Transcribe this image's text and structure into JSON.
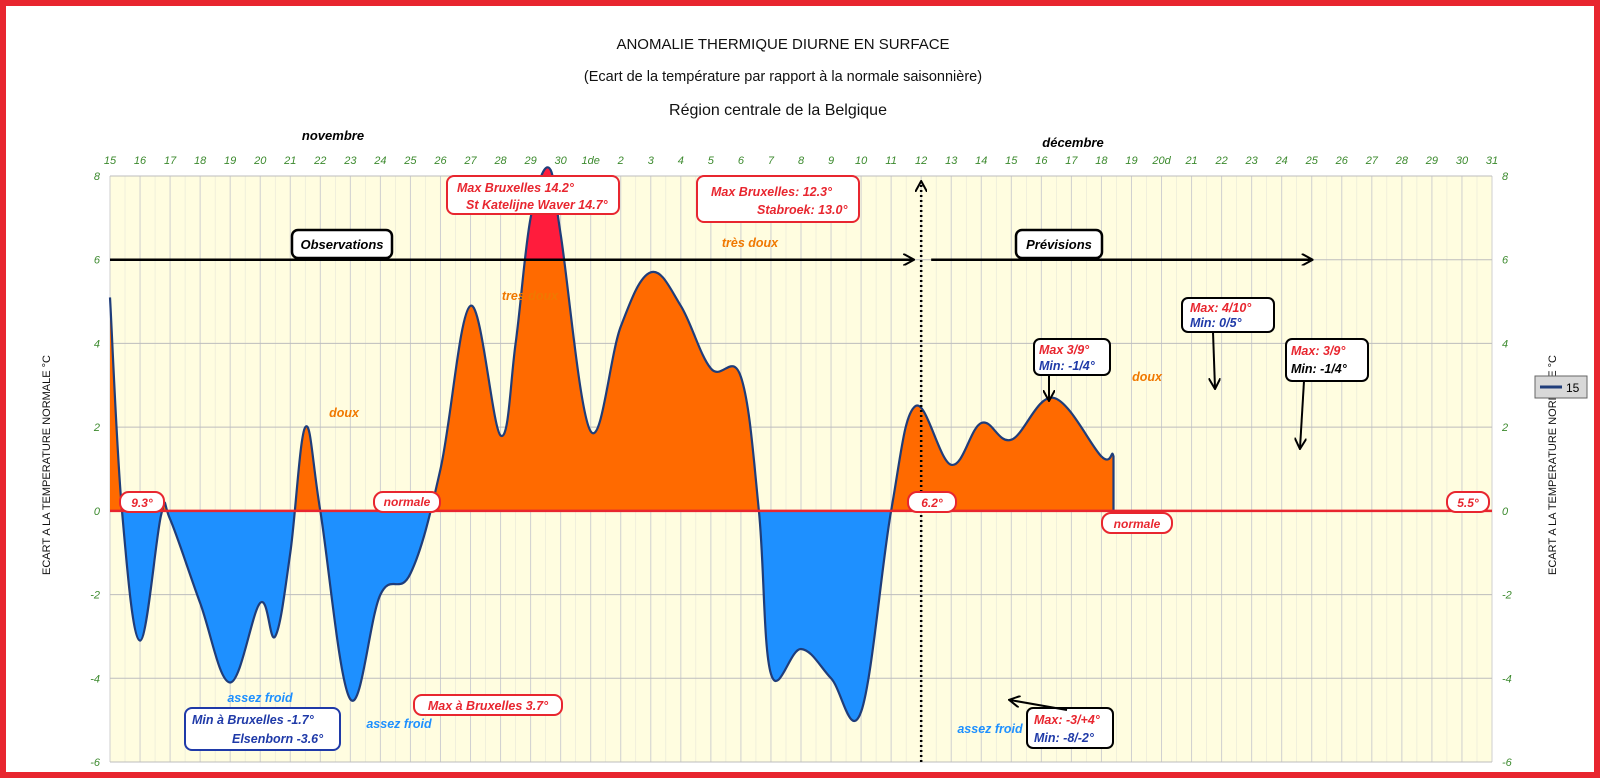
{
  "chart_data": {
    "type": "area",
    "title": "ANOMALIE THERMIQUE DIURNE EN SURFACE",
    "subtitle": "(Ecart de la température par rapport à la normale saisonnière)",
    "region": "Région centrale de la Belgique",
    "ylabel": "ECART A LA TEMPERATURE NORMALE °C",
    "ylim": [
      -6,
      8
    ],
    "yticks": [
      8,
      6,
      4,
      2,
      0,
      -2,
      -4,
      -6
    ],
    "months": [
      {
        "label": "novembre"
      },
      {
        "label": "décembre"
      }
    ],
    "xticks": [
      "15",
      "16",
      "17",
      "18",
      "19",
      "20",
      "21",
      "22",
      "23",
      "24",
      "25",
      "26",
      "27",
      "28",
      "29",
      "30",
      "1de",
      "2",
      "3",
      "4",
      "5",
      "6",
      "7",
      "8",
      "9",
      "10",
      "11",
      "12",
      "13",
      "14",
      "15",
      "16",
      "17",
      "18",
      "19",
      "20d",
      "21",
      "22",
      "23",
      "24",
      "25",
      "26",
      "27",
      "28",
      "29",
      "30",
      "31"
    ],
    "series": [
      {
        "name": "15",
        "color": "#1f3d7a",
        "points": [
          [
            0,
            5.1
          ],
          [
            0.4,
            0
          ],
          [
            1,
            -3.1
          ],
          [
            1.7,
            -0.1
          ],
          [
            2,
            -0.2
          ],
          [
            3,
            -2.2
          ],
          [
            4,
            -4.1
          ],
          [
            5,
            -2.2
          ],
          [
            5.5,
            -3
          ],
          [
            6,
            -1
          ],
          [
            6.5,
            2
          ],
          [
            7,
            0
          ],
          [
            8,
            -4.5
          ],
          [
            9,
            -2
          ],
          [
            10,
            -1.5
          ],
          [
            11,
            1
          ],
          [
            12,
            4.9
          ],
          [
            13,
            1.8
          ],
          [
            13.5,
            4
          ],
          [
            14,
            7
          ],
          [
            14.6,
            8.2
          ],
          [
            15,
            6.6
          ],
          [
            16,
            1.9
          ],
          [
            17,
            4.4
          ],
          [
            18,
            5.7
          ],
          [
            19,
            4.9
          ],
          [
            20,
            3.4
          ],
          [
            21,
            3.2
          ],
          [
            21.6,
            0
          ],
          [
            22,
            -3.9
          ],
          [
            23,
            -3.3
          ],
          [
            24,
            -4
          ],
          [
            25,
            -4.8
          ],
          [
            26,
            0
          ],
          [
            26.8,
            2.5
          ],
          [
            28,
            1.1
          ],
          [
            29,
            2.1
          ],
          [
            30,
            1.7
          ],
          [
            31.4,
            2.7
          ],
          [
            33,
            1.3
          ],
          [
            33.4,
            1.3
          ],
          [
            33.4,
            0
          ]
        ]
      }
    ],
    "forecast_start_x": 27,
    "forecast_end_x": 40,
    "legend": {
      "label": "15",
      "placement": "right"
    },
    "grid": true,
    "colors": {
      "warm": "#ff6a00",
      "cold": "#1e90ff",
      "very_warm": "#ff1c3c",
      "line": "#1f3d7a",
      "zero_line": "#e8262f",
      "plot_bg": "#fffde0"
    },
    "annotations": {
      "observations": "Observations",
      "previsions": "Prévisions",
      "max_bxl_142": "Max Bruxelles 14.2°",
      "st_katelijne": "St Katelijne Waver 14.7°",
      "max_bxl_123": "Max Bruxelles:  12.3°",
      "stabroek": "Stabroek: 13.0°",
      "tres_doux_1": "très doux",
      "tres_doux_2": "tres doux",
      "doux_1": "doux",
      "doux_2": "doux",
      "normale_1": "normale",
      "normale_2": "normale",
      "v93": "9.3°",
      "v62": "6.2°",
      "v55": "5.5°",
      "assez_froid_1": "assez froid",
      "assez_froid_2": "assez froid",
      "assez_froid_3": "assez froid",
      "min_bxl": "Min à Bruxelles -1.7°",
      "elsenborn": "Elsenborn -3.6°",
      "max_bxl_37": "Max à Bruxelles 3.7°",
      "max_39a": "Max 3/9°",
      "min_14a": "Min: -1/4°",
      "max_410": "Max: 4/10°",
      "min_05": "Min: 0/5°",
      "max_39b": "Max: 3/9°",
      "min_14b": "Min: -1/4°",
      "max_34": "Max: -3/+4°",
      "min_82": "Min: -8/-2°"
    }
  }
}
